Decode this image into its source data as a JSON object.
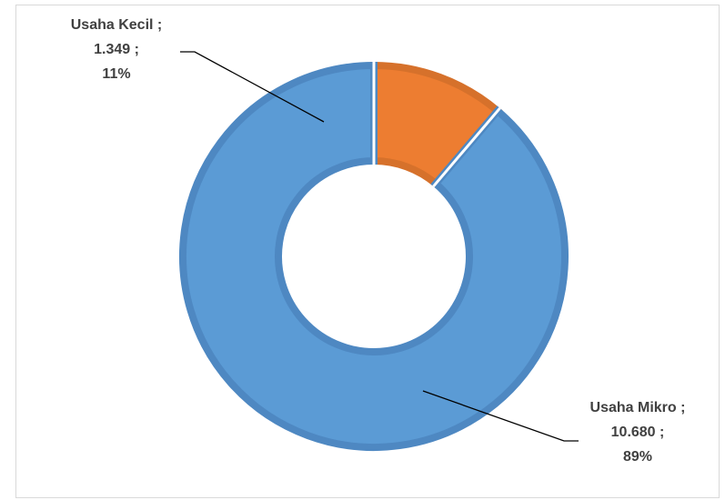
{
  "chart_data": {
    "type": "pie",
    "variant": "doughnut",
    "categories": [
      "Usaha Kecil",
      "Usaha Mikro"
    ],
    "values": [
      1349,
      10680
    ],
    "value_labels": [
      "1.349",
      "10.680"
    ],
    "percent_labels": [
      "11%",
      "89%"
    ],
    "separator": " ;",
    "colors": [
      "#ed7d31",
      "#5b9bd5"
    ],
    "border_colors": [
      "#d6712b",
      "#4e88c2"
    ],
    "title": "",
    "legend": "none",
    "data_labels": "outside-with-leader-lines"
  },
  "labels": {
    "kecil": {
      "category": "Usaha Kecil ;",
      "value": "1.349 ;",
      "percent": "11%"
    },
    "mikro": {
      "category": "Usaha Mikro ;",
      "value": "10.680 ;",
      "percent": "89%"
    }
  }
}
